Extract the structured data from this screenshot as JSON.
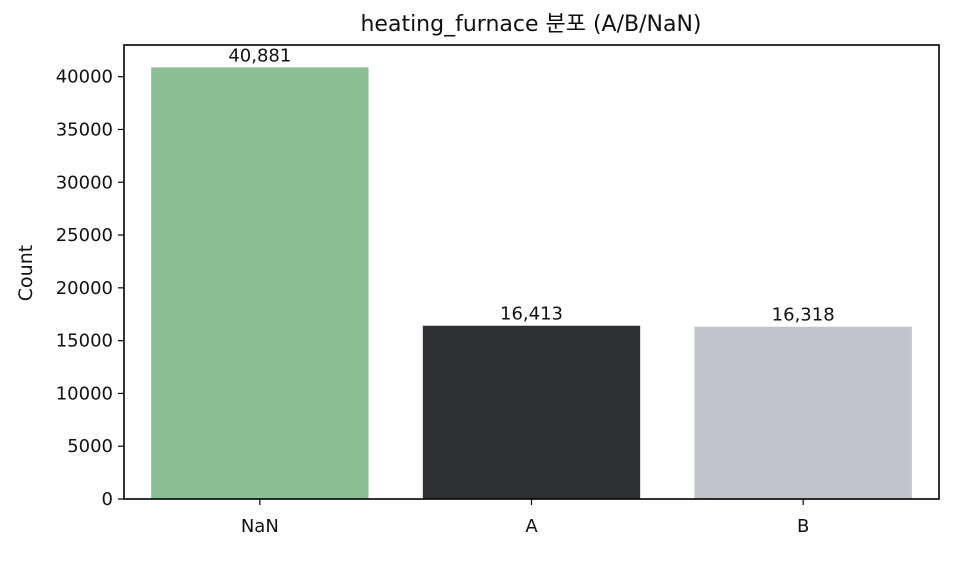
{
  "chart_data": {
    "type": "bar",
    "title": "heating_furnace 분포 (A/B/NaN)",
    "xlabel": "",
    "ylabel": "Count",
    "categories": [
      "NaN",
      "A",
      "B"
    ],
    "values": [
      40881,
      16413,
      16318
    ],
    "value_labels": [
      "40,881",
      "16,413",
      "16,318"
    ],
    "bar_colors": [
      "#8cbe93",
      "#2e2f32",
      "#c1c4c9"
    ],
    "ylim": [
      0,
      43000
    ],
    "yticks": [
      0,
      5000,
      10000,
      15000,
      20000,
      25000,
      30000,
      35000,
      40000
    ],
    "ytick_labels": [
      "0",
      "5000",
      "10000",
      "15000",
      "20000",
      "25000",
      "30000",
      "35000",
      "40000"
    ],
    "grid": false,
    "legend": "none"
  }
}
